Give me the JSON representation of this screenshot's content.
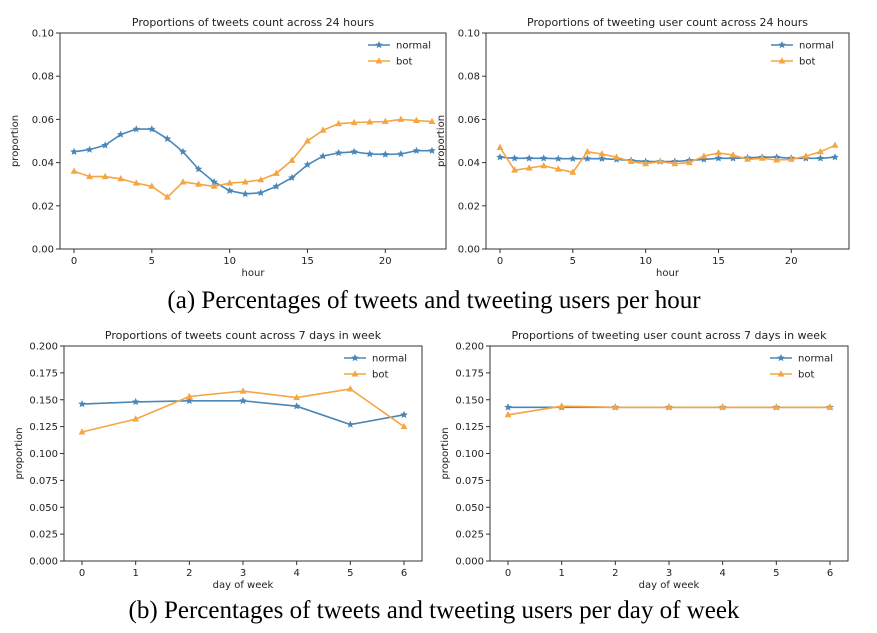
{
  "colors": {
    "normal": "#4a86b7",
    "bot": "#f5a542",
    "axis": "#333333"
  },
  "captions": {
    "a": "(a) Percentages of tweets and tweeting users per hour",
    "b": "(b) Percentages of tweets and tweeting users per day of week"
  },
  "chart_data": [
    {
      "type": "line",
      "title": "Proportions of tweets count across 24 hours",
      "xlabel": "hour",
      "ylabel": "proportion",
      "xlim": [
        0,
        23
      ],
      "ylim": [
        0,
        0.1
      ],
      "xticks": [
        0,
        5,
        10,
        15,
        20
      ],
      "yticks": [
        "0.00",
        "0.02",
        "0.04",
        "0.06",
        "0.08",
        "0.10"
      ],
      "legend": "top-right",
      "x": [
        0,
        1,
        2,
        3,
        4,
        5,
        6,
        7,
        8,
        9,
        10,
        11,
        12,
        13,
        14,
        15,
        16,
        17,
        18,
        19,
        20,
        21,
        22,
        23
      ],
      "series": [
        {
          "name": "normal",
          "marker": "star",
          "values": [
            0.045,
            0.046,
            0.048,
            0.053,
            0.0555,
            0.0555,
            0.051,
            0.045,
            0.037,
            0.031,
            0.027,
            0.0255,
            0.026,
            0.029,
            0.033,
            0.039,
            0.043,
            0.0445,
            0.045,
            0.044,
            0.0438,
            0.044,
            0.0455,
            0.0455
          ]
        },
        {
          "name": "bot",
          "marker": "triangle",
          "values": [
            0.036,
            0.0335,
            0.0335,
            0.0325,
            0.0305,
            0.029,
            0.024,
            0.031,
            0.03,
            0.029,
            0.0305,
            0.031,
            0.032,
            0.035,
            0.041,
            0.05,
            0.055,
            0.058,
            0.0585,
            0.0588,
            0.059,
            0.06,
            0.0595,
            0.059
          ]
        }
      ]
    },
    {
      "type": "line",
      "title": "Proportions of tweeting user count across 24 hours",
      "xlabel": "hour",
      "ylabel": "proportion",
      "xlim": [
        0,
        23
      ],
      "ylim": [
        0,
        0.1
      ],
      "xticks": [
        0,
        5,
        10,
        15,
        20
      ],
      "yticks": [
        "0.00",
        "0.02",
        "0.04",
        "0.06",
        "0.08",
        "0.10"
      ],
      "legend": "top-right",
      "x": [
        0,
        1,
        2,
        3,
        4,
        5,
        6,
        7,
        8,
        9,
        10,
        11,
        12,
        13,
        14,
        15,
        16,
        17,
        18,
        19,
        20,
        21,
        22,
        23
      ],
      "series": [
        {
          "name": "normal",
          "marker": "star",
          "values": [
            0.0425,
            0.042,
            0.042,
            0.042,
            0.0418,
            0.0418,
            0.0418,
            0.0418,
            0.0415,
            0.041,
            0.0405,
            0.0405,
            0.0405,
            0.041,
            0.0415,
            0.042,
            0.042,
            0.0422,
            0.0425,
            0.0425,
            0.042,
            0.042,
            0.042,
            0.0425
          ]
        },
        {
          "name": "bot",
          "marker": "triangle",
          "values": [
            0.047,
            0.0365,
            0.0375,
            0.0385,
            0.037,
            0.0355,
            0.045,
            0.044,
            0.0425,
            0.0405,
            0.0395,
            0.0405,
            0.0395,
            0.04,
            0.043,
            0.0445,
            0.0435,
            0.0415,
            0.042,
            0.0412,
            0.0415,
            0.043,
            0.045,
            0.048
          ]
        }
      ]
    },
    {
      "type": "line",
      "title": "Proportions of tweets count across 7 days in week",
      "xlabel": "day of week",
      "ylabel": "proportion",
      "xlim": [
        0,
        6
      ],
      "ylim": [
        0,
        0.2
      ],
      "xticks": [
        0,
        1,
        2,
        3,
        4,
        5,
        6
      ],
      "yticks": [
        "0.000",
        "0.025",
        "0.050",
        "0.075",
        "0.100",
        "0.125",
        "0.150",
        "0.175",
        "0.200"
      ],
      "legend": "top-right",
      "x": [
        0,
        1,
        2,
        3,
        4,
        5,
        6
      ],
      "series": [
        {
          "name": "normal",
          "marker": "star",
          "values": [
            0.146,
            0.148,
            0.149,
            0.149,
            0.144,
            0.127,
            0.136
          ]
        },
        {
          "name": "bot",
          "marker": "triangle",
          "values": [
            0.12,
            0.132,
            0.153,
            0.158,
            0.152,
            0.16,
            0.125
          ]
        }
      ]
    },
    {
      "type": "line",
      "title": "Proportions of tweeting user count across 7 days in week",
      "xlabel": "day of week",
      "ylabel": "proportion",
      "xlim": [
        0,
        6
      ],
      "ylim": [
        0,
        0.2
      ],
      "xticks": [
        0,
        1,
        2,
        3,
        4,
        5,
        6
      ],
      "yticks": [
        "0.000",
        "0.025",
        "0.050",
        "0.075",
        "0.100",
        "0.125",
        "0.150",
        "0.175",
        "0.200"
      ],
      "legend": "top-right",
      "x": [
        0,
        1,
        2,
        3,
        4,
        5,
        6
      ],
      "series": [
        {
          "name": "normal",
          "marker": "star",
          "values": [
            0.143,
            0.143,
            0.143,
            0.143,
            0.143,
            0.143,
            0.143
          ]
        },
        {
          "name": "bot",
          "marker": "triangle",
          "values": [
            0.136,
            0.144,
            0.143,
            0.143,
            0.143,
            0.143,
            0.143
          ]
        }
      ]
    }
  ]
}
